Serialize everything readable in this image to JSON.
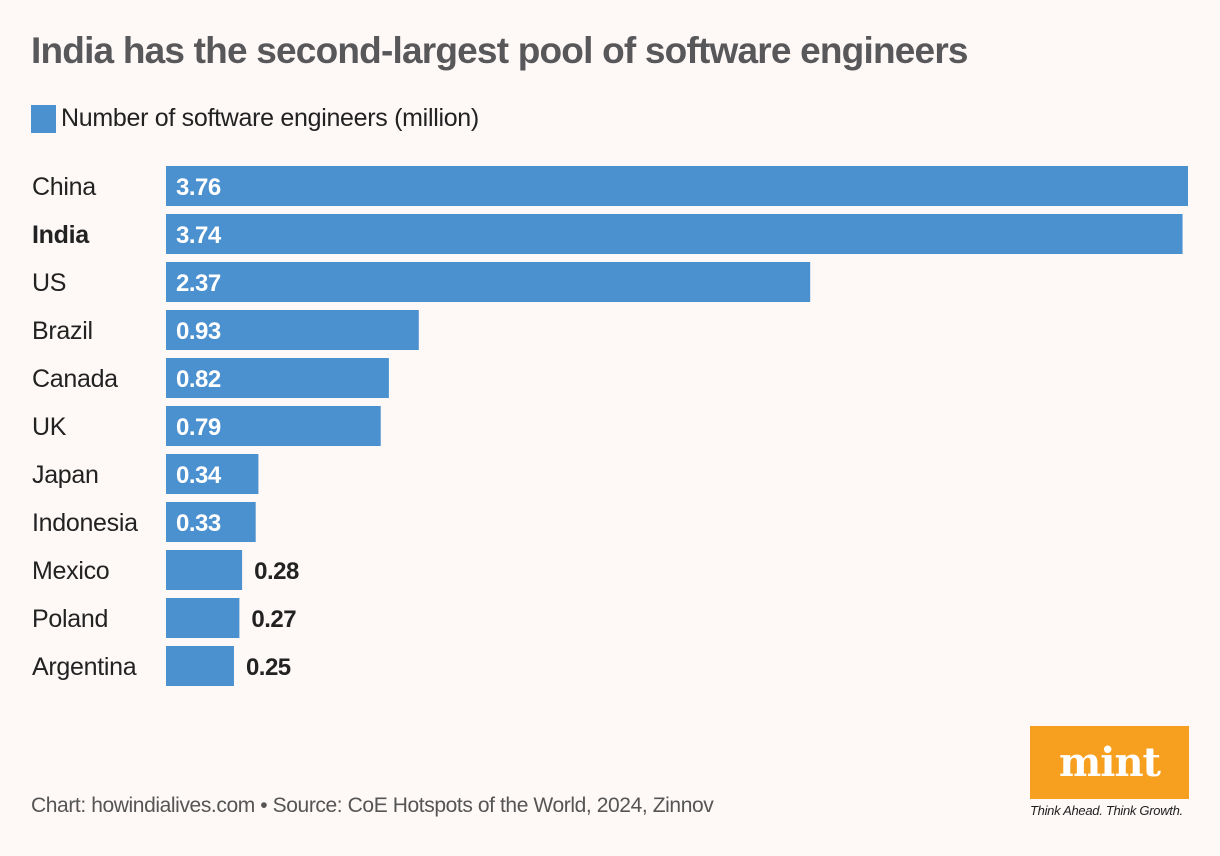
{
  "chart_data": {
    "type": "bar",
    "orientation": "horizontal",
    "title": "India has the second-largest pool of software engineers",
    "legend": [
      "Number of software engineers (million)"
    ],
    "categories": [
      "China",
      "India",
      "US",
      "Brazil",
      "Canada",
      "UK",
      "Japan",
      "Indonesia",
      "Mexico",
      "Poland",
      "Argentina"
    ],
    "values": [
      3.76,
      3.74,
      2.37,
      0.93,
      0.82,
      0.79,
      0.34,
      0.33,
      0.28,
      0.27,
      0.25
    ],
    "value_labels": [
      "3.76",
      "3.74",
      "2.37",
      "0.93",
      "0.82",
      "0.79",
      "0.34",
      "0.33",
      "0.28",
      "0.27",
      "0.25"
    ],
    "highlighted_category": "India",
    "xlabel": "",
    "ylabel": "",
    "xlim": [
      0,
      3.76
    ],
    "grid": false,
    "legend_position": "top-left",
    "bar_color": "#4b90cf"
  },
  "footer": {
    "source": "Chart: howindialives.com • Source: CoE Hotspots of the World, 2024, Zinnov"
  },
  "brand": {
    "logo_text": "mint",
    "tagline": "Think Ahead. Think Growth.",
    "color": "#f7a01f"
  }
}
